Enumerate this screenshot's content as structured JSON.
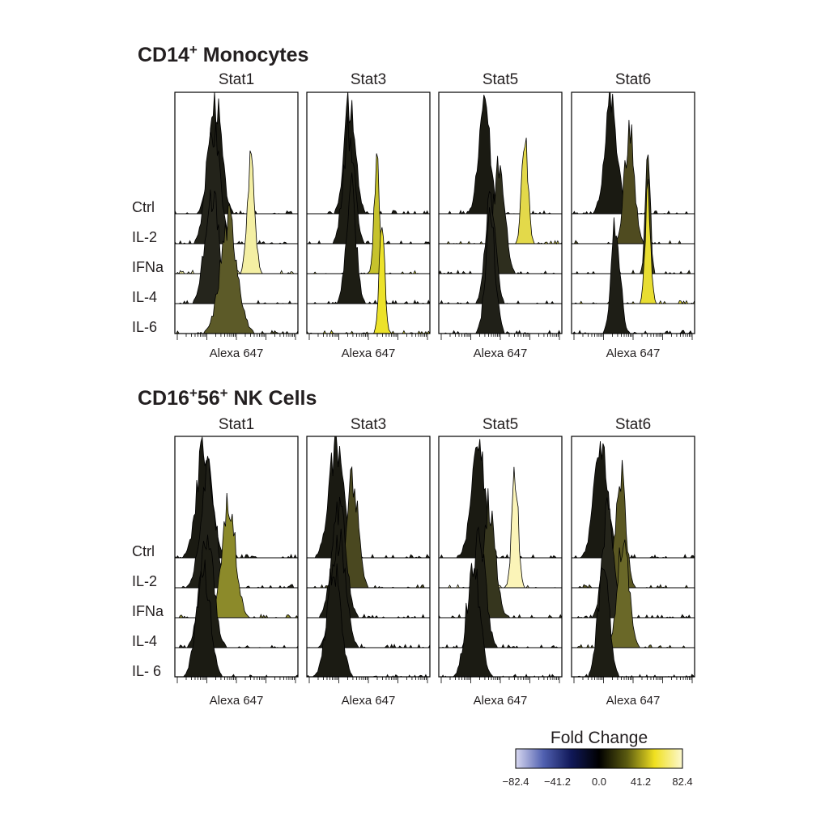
{
  "chart_data": [
    {
      "type": "histogram",
      "title": "CD14",
      "title_superscript": "+",
      "title_suffix": " Monocytes",
      "row_labels": [
        "Ctrl",
        "IL-2",
        "IFNa",
        "IL-4",
        "IL-6"
      ],
      "xlabel": "Alexa 647",
      "x_scale": "log",
      "panels": [
        {
          "name": "Stat1",
          "rows": [
            {
              "label": "Ctrl",
              "peak": 0.33,
              "width": 0.05,
              "fold_change": 0.0,
              "color": "#1a1a12"
            },
            {
              "label": "IL-2",
              "peak": 0.31,
              "width": 0.055,
              "fold_change": 2.0,
              "color": "#23231a"
            },
            {
              "label": "IFNa",
              "peak": 0.62,
              "width": 0.03,
              "fold_change": 70.0,
              "color": "#f4efa3"
            },
            {
              "label": "IL-4",
              "peak": 0.3,
              "width": 0.055,
              "fold_change": 3.0,
              "color": "#25251c"
            },
            {
              "label": "IL-6",
              "peak": 0.44,
              "width": 0.07,
              "fold_change": 22.0,
              "color": "#5c5a28"
            }
          ]
        },
        {
          "name": "Stat3",
          "rows": [
            {
              "label": "Ctrl",
              "peak": 0.35,
              "width": 0.045,
              "fold_change": 0.0,
              "color": "#1a1a12"
            },
            {
              "label": "IL-2",
              "peak": 0.34,
              "width": 0.045,
              "fold_change": 1.0,
              "color": "#1d1d14"
            },
            {
              "label": "IFNa",
              "peak": 0.57,
              "width": 0.022,
              "fold_change": 48.0,
              "color": "#c6c22c"
            },
            {
              "label": "IL-4",
              "peak": 0.36,
              "width": 0.04,
              "fold_change": 1.5,
              "color": "#1d1d14"
            },
            {
              "label": "IL-6",
              "peak": 0.61,
              "width": 0.022,
              "fold_change": 60.0,
              "color": "#ece22a"
            }
          ]
        },
        {
          "name": "Stat5",
          "rows": [
            {
              "label": "Ctrl",
              "peak": 0.37,
              "width": 0.045,
              "fold_change": 0.0,
              "color": "#1a1a12"
            },
            {
              "label": "IL-2",
              "peak": 0.7,
              "width": 0.025,
              "fold_change": 55.0,
              "color": "#e3d94a"
            },
            {
              "label": "IFNa",
              "peak": 0.49,
              "width": 0.045,
              "fold_change": 8.0,
              "color": "#2e2e1e"
            },
            {
              "label": "IL-4",
              "peak": 0.42,
              "width": 0.04,
              "fold_change": 2.0,
              "color": "#202018"
            },
            {
              "label": "IL-6",
              "peak": 0.42,
              "width": 0.04,
              "fold_change": 2.0,
              "color": "#202018"
            }
          ]
        },
        {
          "name": "Stat6",
          "rows": [
            {
              "label": "Ctrl",
              "peak": 0.32,
              "width": 0.05,
              "fold_change": 0.0,
              "color": "#1a1a12"
            },
            {
              "label": "IL-2",
              "peak": 0.47,
              "width": 0.04,
              "fold_change": 14.0,
              "color": "#4f4b20"
            },
            {
              "label": "IFNa",
              "peak": 0.62,
              "width": 0.02,
              "fold_change": 30.0,
              "color": "#3b3a1c"
            },
            {
              "label": "IL-4",
              "peak": 0.62,
              "width": 0.022,
              "fold_change": 58.0,
              "color": "#e8dd32"
            },
            {
              "label": "IL-6",
              "peak": 0.36,
              "width": 0.035,
              "fold_change": 2.0,
              "color": "#1e1e16"
            }
          ]
        }
      ]
    },
    {
      "type": "histogram",
      "title": "CD16",
      "title_superscript": "+",
      "title_mid": "56",
      "title_superscript_2": "+",
      "title_suffix": " NK Cells",
      "row_labels": [
        "Ctrl",
        "IL-2",
        "IFNa",
        "IL-4",
        "IL- 6"
      ],
      "xlabel": "Alexa 647",
      "x_scale": "log",
      "panels": [
        {
          "name": "Stat1",
          "rows": [
            {
              "label": "Ctrl",
              "peak": 0.24,
              "width": 0.06,
              "fold_change": 0.0,
              "color": "#1a1a12"
            },
            {
              "label": "IL-2",
              "peak": 0.27,
              "width": 0.06,
              "fold_change": 2.0,
              "color": "#202018"
            },
            {
              "label": "IFNa",
              "peak": 0.44,
              "width": 0.055,
              "fold_change": 35.0,
              "color": "#8c8a2a"
            },
            {
              "label": "IL-4",
              "peak": 0.26,
              "width": 0.055,
              "fold_change": 1.0,
              "color": "#1d1d14"
            },
            {
              "label": "IL-6",
              "peak": 0.23,
              "width": 0.055,
              "fold_change": 0.5,
              "color": "#1b1b13"
            }
          ]
        },
        {
          "name": "Stat3",
          "rows": [
            {
              "label": "Ctrl",
              "peak": 0.24,
              "width": 0.06,
              "fold_change": 0.0,
              "color": "#1a1a12"
            },
            {
              "label": "IL-2",
              "peak": 0.37,
              "width": 0.045,
              "fold_change": 12.0,
              "color": "#4a4820"
            },
            {
              "label": "IFNa",
              "peak": 0.26,
              "width": 0.055,
              "fold_change": 1.0,
              "color": "#1d1d14"
            },
            {
              "label": "IL-4",
              "peak": 0.26,
              "width": 0.055,
              "fold_change": 1.0,
              "color": "#1d1d14"
            },
            {
              "label": "IL-6",
              "peak": 0.22,
              "width": 0.055,
              "fold_change": 0.5,
              "color": "#1b1b13"
            }
          ]
        },
        {
          "name": "Stat5",
          "rows": [
            {
              "label": "Ctrl",
              "peak": 0.32,
              "width": 0.055,
              "fold_change": 0.0,
              "color": "#1a1a12"
            },
            {
              "label": "IL-2",
              "peak": 0.62,
              "width": 0.025,
              "fold_change": 80.0,
              "color": "#fbf4b8"
            },
            {
              "label": "IFNa",
              "peak": 0.41,
              "width": 0.05,
              "fold_change": 9.0,
              "color": "#36361e"
            },
            {
              "label": "IL-4",
              "peak": 0.33,
              "width": 0.05,
              "fold_change": 1.0,
              "color": "#1d1d14"
            },
            {
              "label": "IL-6",
              "peak": 0.28,
              "width": 0.055,
              "fold_change": 0.5,
              "color": "#1b1b13"
            }
          ]
        },
        {
          "name": "Stat6",
          "rows": [
            {
              "label": "Ctrl",
              "peak": 0.24,
              "width": 0.055,
              "fold_change": 0.0,
              "color": "#1a1a12"
            },
            {
              "label": "IL-2",
              "peak": 0.4,
              "width": 0.04,
              "fold_change": 18.0,
              "color": "#5a5722"
            },
            {
              "label": "IFNa",
              "peak": 0.3,
              "width": 0.045,
              "fold_change": 3.0,
              "color": "#25251b"
            },
            {
              "label": "IL-4",
              "peak": 0.42,
              "width": 0.045,
              "fold_change": 22.0,
              "color": "#6a6828"
            },
            {
              "label": "IL-6",
              "peak": 0.26,
              "width": 0.045,
              "fold_change": 1.0,
              "color": "#1d1d14"
            }
          ]
        }
      ]
    }
  ],
  "color_scale": {
    "title": "Fold Change",
    "ticks": [
      "−82.4",
      "−41.2",
      "0.0",
      "41.2",
      "82.4"
    ],
    "stops": [
      "#d8d8f0",
      "#5060b0",
      "#101858",
      "#000000",
      "#5a5a10",
      "#f0e020",
      "#fcf8d0"
    ]
  }
}
